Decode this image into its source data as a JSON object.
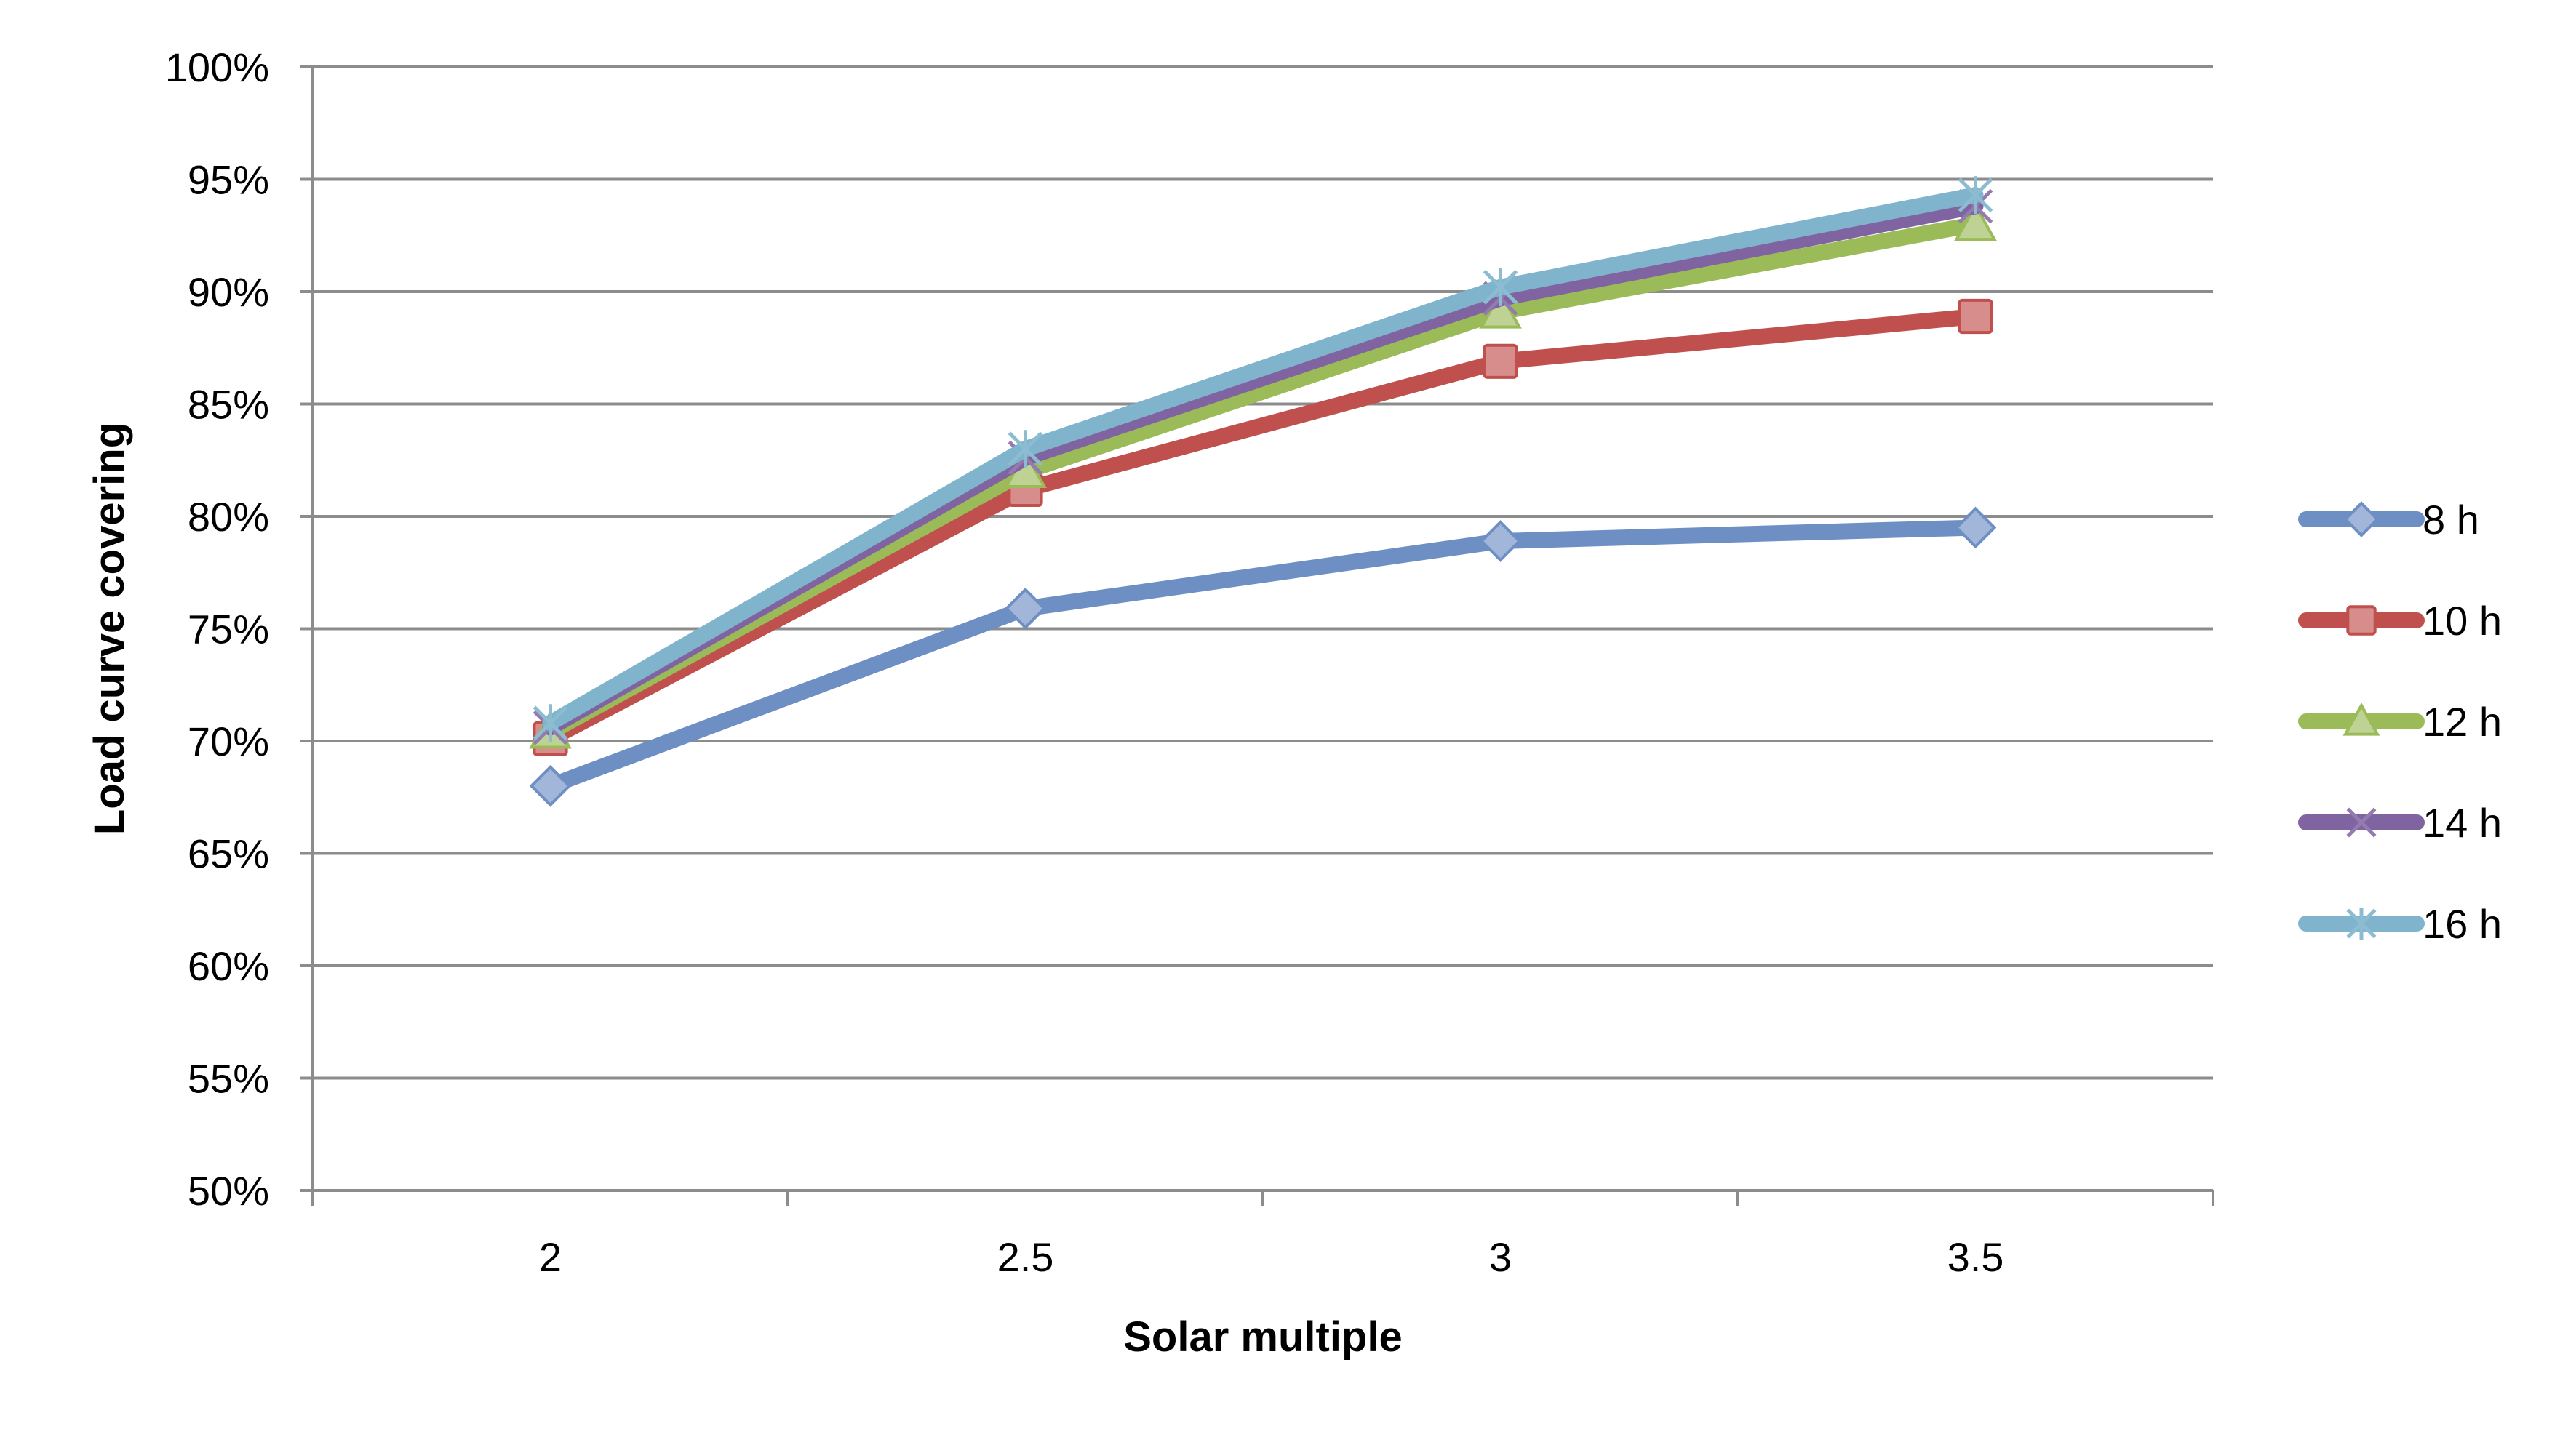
{
  "chart_data": {
    "type": "line",
    "title": "",
    "xlabel": "Solar multiple",
    "ylabel": "Load curve covering",
    "categories": [
      "2",
      "2.5",
      "3",
      "3.5"
    ],
    "yticks": [
      "50%",
      "55%",
      "60%",
      "65%",
      "70%",
      "75%",
      "80%",
      "85%",
      "90%",
      "95%",
      "100%"
    ],
    "ylim": [
      50,
      100
    ],
    "grid": true,
    "legend_position": "right",
    "series": [
      {
        "name": "8 h",
        "color": "#6e8fc4",
        "marker": "diamond",
        "values": [
          68.0,
          75.9,
          78.9,
          79.5
        ]
      },
      {
        "name": "10 h",
        "color": "#c0504d",
        "marker": "square",
        "values": [
          70.1,
          81.2,
          86.9,
          88.9
        ]
      },
      {
        "name": "12 h",
        "color": "#9bbb59",
        "marker": "triangle",
        "values": [
          70.4,
          82.0,
          89.1,
          93.0
        ]
      },
      {
        "name": "14 h",
        "color": "#8064a2",
        "marker": "x",
        "values": [
          70.6,
          82.6,
          89.7,
          93.8
        ]
      },
      {
        "name": "16 h",
        "color": "#7fb4cc",
        "marker": "star",
        "values": [
          70.8,
          83.0,
          90.2,
          94.3
        ]
      }
    ]
  }
}
